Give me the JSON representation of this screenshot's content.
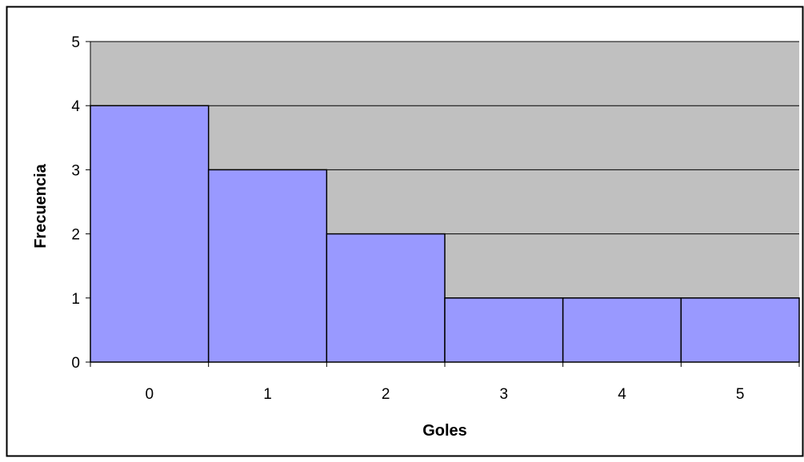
{
  "chart_data": {
    "type": "bar",
    "title": "",
    "xlabel": "Goles",
    "ylabel": "Frecuencia",
    "categories": [
      "0",
      "1",
      "2",
      "3",
      "4",
      "5"
    ],
    "values": [
      4,
      3,
      2,
      1,
      1,
      1
    ],
    "ylim": [
      0,
      5
    ],
    "yticks": [
      "0",
      "1",
      "2",
      "3",
      "4",
      "5"
    ],
    "grid": true,
    "legend": "none",
    "bar_gap": 0
  },
  "colors": {
    "bar_fill": "#9999ff",
    "plot_background": "#c0c0c0",
    "outline": "#000000",
    "page_background": "#ffffff"
  }
}
